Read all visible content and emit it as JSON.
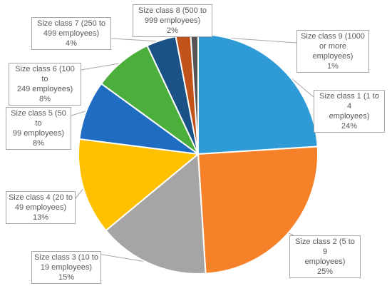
{
  "chart_data": {
    "type": "pie",
    "title": "",
    "series": [
      {
        "values": [
          24,
          25,
          15,
          13,
          8,
          8,
          4,
          2,
          1
        ]
      }
    ],
    "categories": [
      "Size class 1 (1 to 4 employees)",
      "Size class 2 (5 to 9 employees)",
      "Size class 3 (10 to 19 employees)",
      "Size class 4 (20 to 49 employees)",
      "Size class 5 (50 to 99 employees)",
      "Size class 6 (100 to 249 employees)",
      "Size class 7 (250 to 499 employees)",
      "Size class 8 (500 to 999 employees)",
      "Size class 9 (1000 or more employees)"
    ],
    "data_labels": [
      "Size class 1 (1 to 4\nemployees)\n24%",
      "Size class 2 (5 to 9\nemployees)\n25%",
      "Size class 3 (10 to\n19 employees)\n15%",
      "Size class 4 (20 to\n49 employees)\n13%",
      "Size class 5 (50 to\n99 employees)\n8%",
      "Size class 6 (100 to\n249 employees)\n8%",
      "Size class 7 (250 to\n499 employees)\n4%",
      "Size class 8 (500 to\n999 employees)\n2%",
      "Size class 9 (1000\nor more\nemployees)\n1%"
    ],
    "colors": [
      "#2e9bd6",
      "#f78129",
      "#a5a5a5",
      "#ffc000",
      "#1f6dc2",
      "#4caf3c",
      "#1a5287",
      "#c0521a",
      "#555555"
    ],
    "legend": "none"
  }
}
